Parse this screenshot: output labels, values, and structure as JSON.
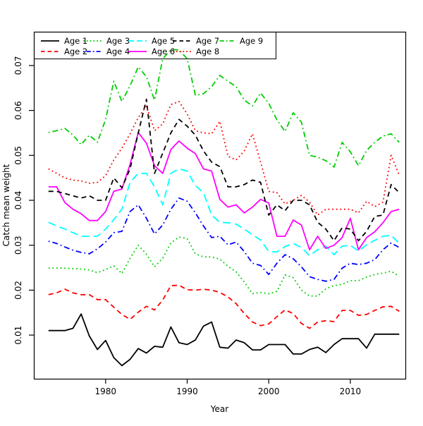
{
  "figure": {
    "title": "",
    "xlabel": "Year",
    "ylabel": "Catch mean weight",
    "x_tick_labels": [
      "1980",
      "1990",
      "2000",
      "2010"
    ],
    "y_tick_labels": [
      "0.01",
      "0.02",
      "0.03",
      "0.04",
      "0.05",
      "0.06",
      "0.07"
    ]
  },
  "legend": {
    "items": [
      {
        "label": "Age 1",
        "color": "#000000",
        "style": "solid"
      },
      {
        "label": "Age 2",
        "color": "#ff0000",
        "style": "dashed"
      },
      {
        "label": "Age 3",
        "color": "#00cd00",
        "style": "dotted"
      },
      {
        "label": "Age 4",
        "color": "#0000ff",
        "style": "dashdot"
      },
      {
        "label": "Age 5",
        "color": "#00ffff",
        "style": "longdash"
      },
      {
        "label": "Age 6",
        "color": "#ff00ff",
        "style": "solid"
      },
      {
        "label": "Age 7",
        "color": "#000000",
        "style": "dashed"
      },
      {
        "label": "Age 8",
        "color": "#ff0000",
        "style": "dotted"
      },
      {
        "label": "Age 9",
        "color": "#00cd00",
        "style": "dashdot"
      }
    ]
  },
  "chart_data": {
    "type": "line",
    "title": "",
    "xlabel": "Year",
    "ylabel": "Catch mean weight",
    "x_ticks": [
      1980,
      1990,
      2000,
      2010
    ],
    "y_ticks": [
      0.01,
      0.02,
      0.03,
      0.04,
      0.05,
      0.06,
      0.07
    ],
    "xlim": [
      1971.2,
      2016.6
    ],
    "ylim": [
      0.0003,
      0.0775
    ],
    "grid": false,
    "legend_position": "top-left-inside",
    "x": [
      1973,
      1974,
      1975,
      1976,
      1977,
      1978,
      1979,
      1980,
      1981,
      1982,
      1983,
      1984,
      1985,
      1986,
      1987,
      1988,
      1989,
      1990,
      1991,
      1992,
      1993,
      1994,
      1995,
      1996,
      1997,
      1998,
      1999,
      2000,
      2001,
      2002,
      2003,
      2004,
      2005,
      2006,
      2007,
      2008,
      2009,
      2010,
      2011,
      2012,
      2013,
      2014,
      2015,
      2016
    ],
    "series": [
      {
        "name": "Age 1",
        "color": "#000000",
        "linestyle": "solid",
        "values": [
          0.011,
          0.011,
          0.011,
          0.0115,
          0.0147,
          0.0098,
          0.0068,
          0.0088,
          0.005,
          0.0032,
          0.0046,
          0.007,
          0.006,
          0.0075,
          0.0073,
          0.0118,
          0.0083,
          0.0079,
          0.0089,
          0.012,
          0.0129,
          0.0073,
          0.0071,
          0.0089,
          0.0083,
          0.0067,
          0.0067,
          0.0079,
          0.0079,
          0.0079,
          0.0058,
          0.0058,
          0.0068,
          0.0073,
          0.0061,
          0.0079,
          0.0092,
          0.0092,
          0.0092,
          0.0071,
          0.0102,
          0.0102,
          0.0102,
          0.0102
        ]
      },
      {
        "name": "Age 2",
        "color": "#ff0000",
        "linestyle": "dashed",
        "values": [
          0.019,
          0.0194,
          0.0202,
          0.0194,
          0.019,
          0.019,
          0.0179,
          0.0179,
          0.0162,
          0.0146,
          0.0135,
          0.0151,
          0.0164,
          0.0156,
          0.0178,
          0.021,
          0.0211,
          0.0201,
          0.02,
          0.0202,
          0.02,
          0.0195,
          0.0185,
          0.017,
          0.0148,
          0.0129,
          0.0121,
          0.0125,
          0.0141,
          0.0156,
          0.0148,
          0.0126,
          0.0115,
          0.0129,
          0.0132,
          0.013,
          0.0155,
          0.0155,
          0.0144,
          0.0146,
          0.0155,
          0.0163,
          0.0164,
          0.0153
        ]
      },
      {
        "name": "Age 3",
        "color": "#00cd00",
        "linestyle": "dotted",
        "values": [
          0.0249,
          0.0249,
          0.0249,
          0.0248,
          0.0247,
          0.0245,
          0.0239,
          0.0246,
          0.0254,
          0.0237,
          0.0271,
          0.03,
          0.028,
          0.0252,
          0.0271,
          0.0305,
          0.0318,
          0.0315,
          0.0281,
          0.0274,
          0.0274,
          0.0269,
          0.0253,
          0.0241,
          0.0218,
          0.0192,
          0.0195,
          0.0192,
          0.0197,
          0.0234,
          0.0228,
          0.02,
          0.0187,
          0.0187,
          0.0203,
          0.021,
          0.0213,
          0.0221,
          0.0221,
          0.0229,
          0.0235,
          0.0238,
          0.0242,
          0.0231
        ]
      },
      {
        "name": "Age 4",
        "color": "#0000ff",
        "linestyle": "dashdot",
        "values": [
          0.0309,
          0.0304,
          0.0296,
          0.0289,
          0.0284,
          0.0281,
          0.0292,
          0.0307,
          0.0328,
          0.0331,
          0.0375,
          0.039,
          0.036,
          0.0325,
          0.0345,
          0.038,
          0.0405,
          0.0398,
          0.0372,
          0.0343,
          0.0317,
          0.032,
          0.0301,
          0.0307,
          0.0286,
          0.026,
          0.0255,
          0.0235,
          0.026,
          0.0279,
          0.027,
          0.0252,
          0.023,
          0.0224,
          0.022,
          0.0224,
          0.0249,
          0.026,
          0.0257,
          0.026,
          0.0268,
          0.029,
          0.0305,
          0.0295
        ]
      },
      {
        "name": "Age 5",
        "color": "#00ffff",
        "linestyle": "longdash",
        "values": [
          0.0351,
          0.0343,
          0.0336,
          0.0328,
          0.032,
          0.032,
          0.032,
          0.0336,
          0.0357,
          0.038,
          0.044,
          0.046,
          0.046,
          0.043,
          0.039,
          0.046,
          0.047,
          0.0465,
          0.0433,
          0.0417,
          0.0367,
          0.0351,
          0.035,
          0.0347,
          0.0336,
          0.0323,
          0.0312,
          0.0286,
          0.0285,
          0.0297,
          0.0304,
          0.0295,
          0.0277,
          0.029,
          0.0298,
          0.0279,
          0.0298,
          0.03,
          0.0287,
          0.0301,
          0.0311,
          0.032,
          0.0322,
          0.0304
        ]
      },
      {
        "name": "Age 6",
        "color": "#ff00ff",
        "linestyle": "solid",
        "values": [
          0.043,
          0.043,
          0.0395,
          0.038,
          0.037,
          0.0355,
          0.0355,
          0.0375,
          0.042,
          0.0425,
          0.048,
          0.0551,
          0.0527,
          0.0477,
          0.046,
          0.0513,
          0.0532,
          0.0516,
          0.0504,
          0.047,
          0.0465,
          0.0402,
          0.0385,
          0.039,
          0.0372,
          0.0385,
          0.0402,
          0.0394,
          0.032,
          0.032,
          0.0356,
          0.0345,
          0.029,
          0.032,
          0.0293,
          0.03,
          0.0317,
          0.036,
          0.029,
          0.0317,
          0.033,
          0.035,
          0.0375,
          0.038
        ]
      },
      {
        "name": "Age 7",
        "color": "#000000",
        "linestyle": "dashed",
        "values": [
          0.042,
          0.042,
          0.0415,
          0.041,
          0.0405,
          0.041,
          0.04,
          0.04,
          0.045,
          0.0428,
          0.047,
          0.055,
          0.0625,
          0.046,
          0.0505,
          0.055,
          0.058,
          0.0565,
          0.0545,
          0.051,
          0.0485,
          0.0475,
          0.043,
          0.043,
          0.0435,
          0.0445,
          0.044,
          0.0367,
          0.039,
          0.0377,
          0.04,
          0.04,
          0.039,
          0.0351,
          0.0336,
          0.031,
          0.0339,
          0.0336,
          0.031,
          0.0331,
          0.0364,
          0.0367,
          0.0435,
          0.0417
        ]
      },
      {
        "name": "Age 8",
        "color": "#ff0000",
        "linestyle": "dotted",
        "values": [
          0.047,
          0.046,
          0.045,
          0.0445,
          0.0443,
          0.0438,
          0.044,
          0.0455,
          0.049,
          0.0516,
          0.0548,
          0.0584,
          0.061,
          0.0555,
          0.057,
          0.0613,
          0.062,
          0.0592,
          0.0555,
          0.055,
          0.0548,
          0.0576,
          0.0498,
          0.049,
          0.051,
          0.0548,
          0.0485,
          0.042,
          0.0417,
          0.0392,
          0.04,
          0.0411,
          0.0396,
          0.0367,
          0.038,
          0.038,
          0.038,
          0.038,
          0.0372,
          0.0398,
          0.0386,
          0.0396,
          0.05,
          0.0456
        ]
      },
      {
        "name": "Age 9",
        "color": "#00cd00",
        "linestyle": "dashdot",
        "values": [
          0.0551,
          0.0555,
          0.056,
          0.0545,
          0.0524,
          0.0545,
          0.0529,
          0.058,
          0.0665,
          0.062,
          0.0655,
          0.0697,
          0.0675,
          0.0623,
          0.0715,
          0.0735,
          0.0735,
          0.0715,
          0.0634,
          0.0637,
          0.0653,
          0.0678,
          0.0665,
          0.0653,
          0.0623,
          0.061,
          0.0639,
          0.0616,
          0.0579,
          0.0553,
          0.0595,
          0.0574,
          0.05,
          0.0496,
          0.0488,
          0.0474,
          0.0529,
          0.0508,
          0.0477,
          0.0511,
          0.0529,
          0.0543,
          0.0548,
          0.0529
        ]
      }
    ]
  }
}
